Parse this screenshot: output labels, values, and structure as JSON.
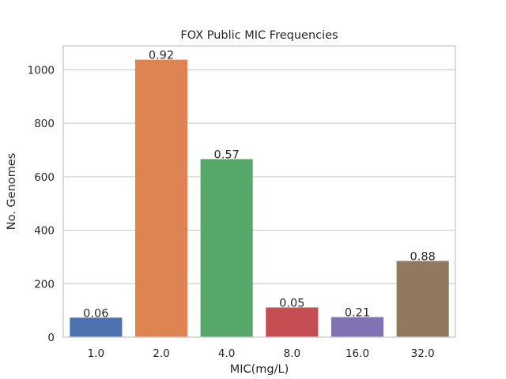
{
  "chart_data": {
    "type": "bar",
    "title": "FOX Public MIC Frequencies",
    "xlabel": "MIC(mg/L)",
    "ylabel": "No. Genomes",
    "categories": [
      "1.0",
      "2.0",
      "4.0",
      "8.0",
      "16.0",
      "32.0"
    ],
    "values": [
      73,
      1038,
      666,
      111,
      75,
      285
    ],
    "bar_labels": [
      "0.06",
      "0.92",
      "0.57",
      "0.05",
      "0.21",
      "0.88"
    ],
    "colors": [
      "#4c72b0",
      "#dd8452",
      "#55a868",
      "#c44e52",
      "#8172b3",
      "#937860"
    ],
    "ylim": [
      0,
      1090
    ],
    "yticks": [
      0,
      200,
      400,
      600,
      800,
      1000
    ],
    "grid": "horizontal",
    "legend": "none"
  }
}
